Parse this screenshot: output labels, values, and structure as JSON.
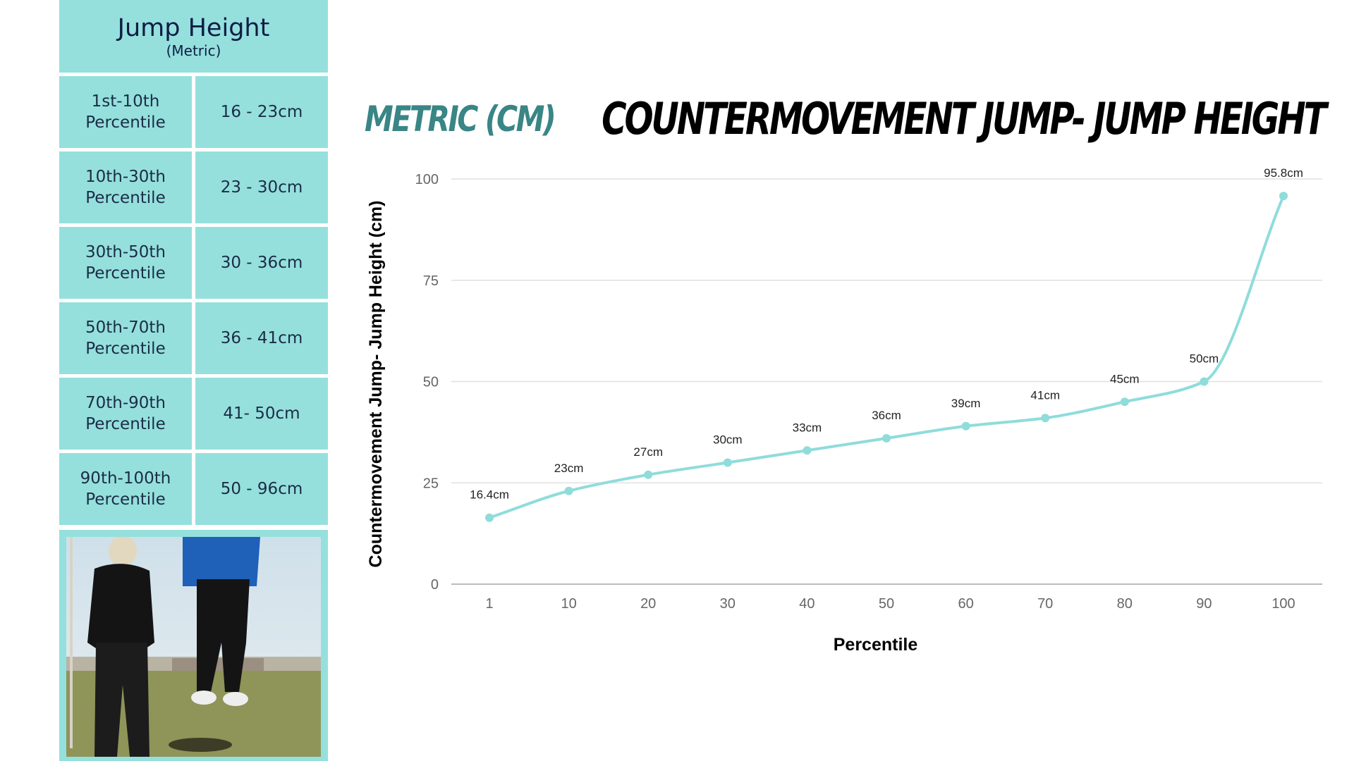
{
  "panel": {
    "title": "Jump Height",
    "subtitle": "(Metric)",
    "rows": [
      {
        "label1": "1st-10th",
        "label2": "Percentile",
        "value": "16 - 23cm"
      },
      {
        "label1": "10th-30th",
        "label2": "Percentile",
        "value": "23 - 30cm"
      },
      {
        "label1": "30th-50th",
        "label2": "Percentile",
        "value": "30 - 36cm"
      },
      {
        "label1": "50th-70th",
        "label2": "Percentile",
        "value": "36 - 41cm"
      },
      {
        "label1": "70th-90th",
        "label2": "Percentile",
        "value": "41- 50cm"
      },
      {
        "label1": "90th-100th",
        "label2": "Percentile",
        "value": "50 - 96cm"
      }
    ]
  },
  "metric_heading": "METRIC (CM)",
  "colors": {
    "teal_fill": "#95e0dc",
    "line": "#8fdcdb",
    "heading_teal": "#3a8585",
    "grid": "#e0e0e0"
  },
  "chart_data": {
    "type": "line",
    "title": "COUNTERMOVEMENT JUMP- JUMP HEIGHT",
    "xlabel": "Percentile",
    "ylabel": "Countermovement Jump- Jump Height (cm)",
    "categories": [
      "1",
      "10",
      "20",
      "30",
      "40",
      "50",
      "60",
      "70",
      "80",
      "90",
      "100"
    ],
    "series": [
      {
        "values": [
          16.4,
          23,
          27,
          30,
          33,
          36,
          39,
          41,
          45,
          50,
          95.8
        ],
        "labels": [
          "16.4cm",
          "23cm",
          "27cm",
          "30cm",
          "33cm",
          "36cm",
          "39cm",
          "41cm",
          "45cm",
          "50cm",
          "95.8cm"
        ]
      }
    ],
    "ylim": [
      0,
      100
    ],
    "yticks": [
      0,
      25,
      50,
      75,
      100
    ],
    "grid": true,
    "smooth": true
  }
}
